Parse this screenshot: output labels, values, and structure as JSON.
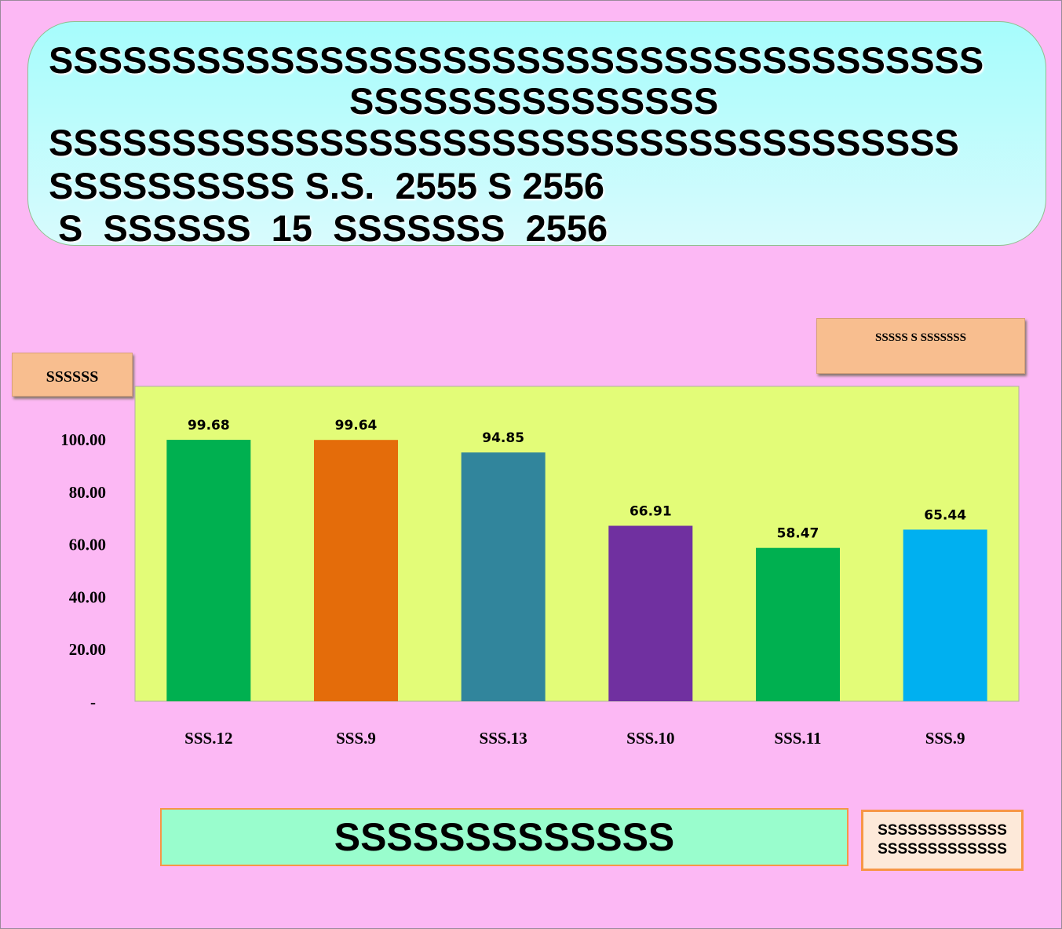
{
  "header": {
    "lines": [
      "SSSSSSSSSSSSSSSSSSSSSSSSSSSSSSSSSSSSSS",
      "SSSSSSSSSSSSSSS",
      "SSSSSSSSSSSSSSSSSSSSSSSSSSSSSSSSSSSSS",
      "SSSSSSSSSS S.S.  2555 S 2556",
      "S  SSSSSS  15  SSSSSSS  2556"
    ]
  },
  "notes": {
    "unit": "SSSSSS",
    "source": "SSSSS  S  SSSSSSS"
  },
  "bottom": {
    "label": "SSSSSSSSSSSSS",
    "footnote": [
      "SSSSSSSSSSSSS",
      "SSSSSSSSSSSSS"
    ]
  },
  "colors": {
    "plot_background": "#e3fc78",
    "bars": [
      "#00b050",
      "#e46c0a",
      "#31859c",
      "#7030a0",
      "#00b050",
      "#00b0f0"
    ]
  },
  "chart_data": {
    "type": "bar",
    "categories": [
      "SSS.12",
      "SSS.9",
      "SSS.13",
      "SSS.10",
      "SSS.11",
      "SSS.9"
    ],
    "values": [
      99.68,
      99.64,
      94.85,
      66.91,
      58.47,
      65.44
    ],
    "value_labels": [
      "99.68",
      "99.64",
      "94.85",
      "66.91",
      "58.47",
      "65.44"
    ],
    "yticks": [
      0,
      20,
      40,
      60,
      80,
      100
    ],
    "ytick_labels": [
      "-",
      "20.00",
      "40.00",
      "60.00",
      "80.00",
      "100.00"
    ],
    "ylim": [
      0,
      120
    ],
    "grid": false,
    "legend": "none"
  }
}
